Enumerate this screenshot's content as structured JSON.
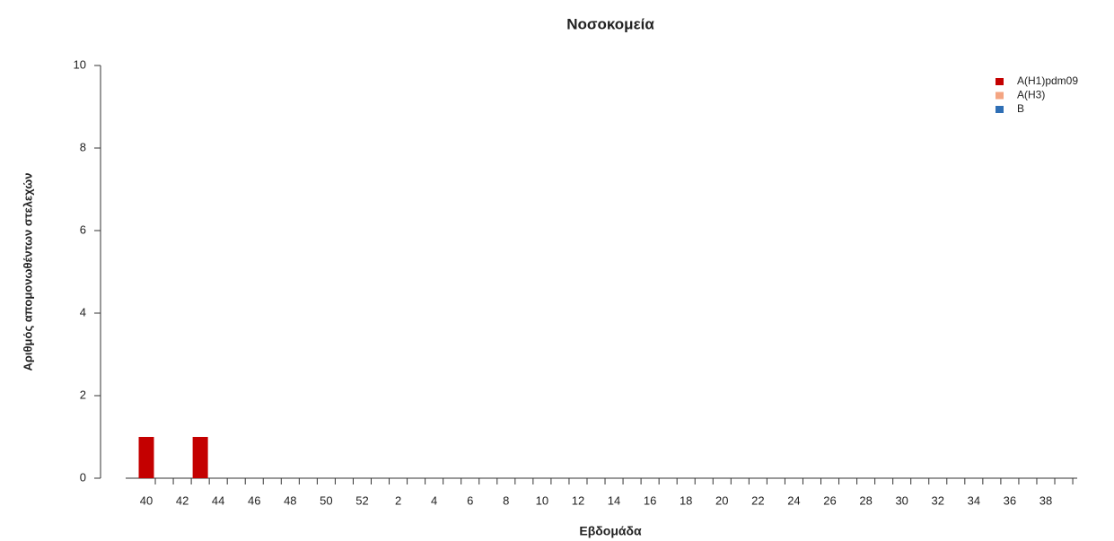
{
  "chart_data": {
    "type": "bar",
    "stacked": true,
    "title": "Νοσοκομεία",
    "x_label": "Εβδομάδα",
    "y_label": "Αριθμός απομονωθέντων στελεχών",
    "categories": [
      "40",
      null,
      "42",
      null,
      "44",
      null,
      "46",
      null,
      "48",
      null,
      "50",
      null,
      "52",
      null,
      "2",
      null,
      "4",
      null,
      "6",
      null,
      "8",
      null,
      "10",
      null,
      "12",
      null,
      "14",
      null,
      "16",
      null,
      "18",
      null,
      "20",
      null,
      "22",
      null,
      "24",
      null,
      "26",
      null,
      "28",
      null,
      "30",
      null,
      "32",
      null,
      "34",
      null,
      "36",
      null,
      "38",
      null
    ],
    "series": [
      {
        "name": "A(H1)pdm09",
        "color": "#c40000",
        "values": [
          1,
          0,
          0,
          1,
          0,
          0,
          0,
          0,
          0,
          0,
          0,
          0,
          0,
          0,
          0,
          0,
          0,
          0,
          0,
          0,
          0,
          0,
          0,
          0,
          0,
          0,
          0,
          0,
          0,
          0,
          0,
          0,
          0,
          0,
          0,
          0,
          0,
          0,
          0,
          0,
          0,
          0,
          0,
          0,
          0,
          0,
          0,
          0,
          0,
          0,
          0,
          0
        ]
      },
      {
        "name": "A(H3)",
        "color": "#f4a582",
        "values": [
          0,
          0,
          0,
          0,
          0,
          0,
          0,
          0,
          0,
          0,
          0,
          0,
          0,
          0,
          0,
          0,
          0,
          0,
          0,
          0,
          0,
          0,
          0,
          0,
          0,
          0,
          0,
          0,
          0,
          0,
          0,
          0,
          0,
          0,
          0,
          0,
          0,
          0,
          0,
          0,
          0,
          0,
          0,
          0,
          0,
          0,
          0,
          0,
          0,
          0,
          0,
          0
        ]
      },
      {
        "name": "B",
        "color": "#2f6fb5",
        "values": [
          0,
          0,
          0,
          0,
          0,
          0,
          0,
          0,
          0,
          0,
          0,
          0,
          0,
          0,
          0,
          0,
          0,
          0,
          0,
          0,
          0,
          0,
          0,
          0,
          0,
          0,
          0,
          0,
          0,
          0,
          0,
          0,
          0,
          0,
          0,
          0,
          0,
          0,
          0,
          0,
          0,
          0,
          0,
          0,
          0,
          0,
          0,
          0,
          0,
          0,
          0,
          0
        ]
      }
    ],
    "ylim": [
      0,
      10
    ],
    "yticks": [
      0,
      2,
      4,
      6,
      8,
      10
    ],
    "legend": "top-right"
  }
}
